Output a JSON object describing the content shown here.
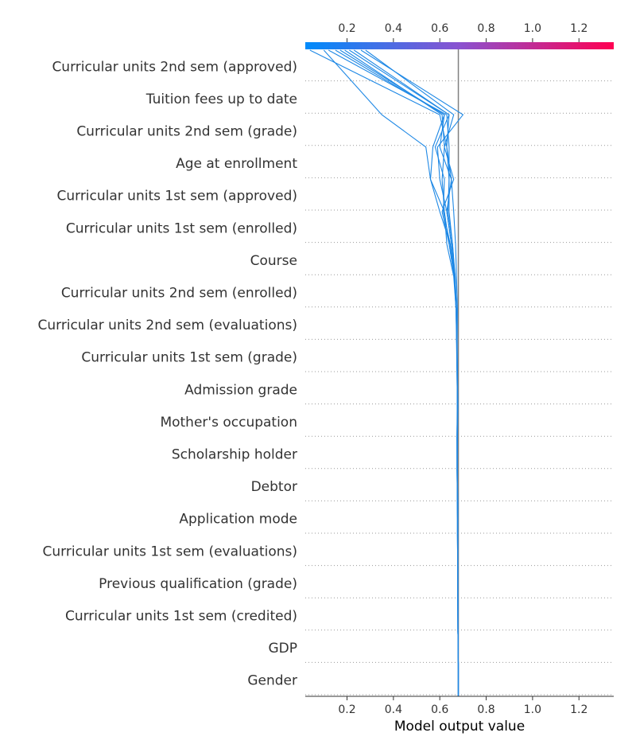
{
  "chart_data": {
    "type": "line",
    "title": "",
    "xlabel": "Model output value",
    "ylabel": "",
    "xlim": [
      0.02,
      1.35
    ],
    "x_ticks": [
      0.2,
      0.4,
      0.6,
      0.8,
      1.0,
      1.2
    ],
    "x_tick_labels": [
      "0.2",
      "0.4",
      "0.6",
      "0.8",
      "1.0",
      "1.2"
    ],
    "base_value": 0.68,
    "grid": "dotted horizontal",
    "colorbar": {
      "position": "top",
      "from_color": "#008bfb",
      "to_color": "#ff0052"
    },
    "features": [
      "Curricular units 2nd sem (approved)",
      "Tuition fees up to date",
      "Curricular units 2nd sem (grade)",
      "Age at enrollment",
      "Curricular units 1st sem (approved)",
      "Curricular units 1st sem (enrolled)",
      "Course",
      "Curricular units 2nd sem (enrolled)",
      "Curricular units 2nd sem (evaluations)",
      "Curricular units 1st sem (grade)",
      "Admission grade",
      "Mother's occupation",
      "Scholarship holder",
      "Debtor",
      "Application mode",
      "Curricular units 1st sem (evaluations)",
      "Previous qualification (grade)",
      "Curricular units 1st sem (credited)",
      "GDP",
      "Gender"
    ],
    "line_color": "#1e88e5",
    "series": [
      {
        "values": [
          0.68,
          0.68,
          0.68,
          0.678,
          0.678,
          0.678,
          0.678,
          0.678,
          0.675,
          0.676,
          0.678,
          0.676,
          0.675,
          0.676,
          0.672,
          0.668,
          0.66,
          0.65,
          0.63,
          0.6,
          0.04
        ]
      },
      {
        "values": [
          0.68,
          0.68,
          0.68,
          0.678,
          0.677,
          0.677,
          0.676,
          0.676,
          0.674,
          0.674,
          0.676,
          0.674,
          0.672,
          0.67,
          0.662,
          0.64,
          0.62,
          0.56,
          0.54,
          0.35,
          0.1
        ]
      },
      {
        "values": [
          0.68,
          0.68,
          0.68,
          0.678,
          0.678,
          0.677,
          0.677,
          0.676,
          0.675,
          0.675,
          0.677,
          0.675,
          0.673,
          0.671,
          0.664,
          0.645,
          0.6,
          0.56,
          0.57,
          0.62,
          0.15
        ]
      },
      {
        "values": [
          0.68,
          0.68,
          0.68,
          0.678,
          0.678,
          0.678,
          0.677,
          0.676,
          0.675,
          0.675,
          0.676,
          0.676,
          0.674,
          0.672,
          0.666,
          0.65,
          0.63,
          0.65,
          0.6,
          0.62,
          0.17
        ]
      },
      {
        "values": [
          0.68,
          0.68,
          0.68,
          0.678,
          0.678,
          0.677,
          0.676,
          0.676,
          0.674,
          0.675,
          0.675,
          0.675,
          0.673,
          0.67,
          0.662,
          0.64,
          0.61,
          0.66,
          0.62,
          0.61,
          0.19
        ]
      },
      {
        "values": [
          0.68,
          0.68,
          0.68,
          0.678,
          0.677,
          0.677,
          0.677,
          0.676,
          0.675,
          0.674,
          0.675,
          0.675,
          0.674,
          0.671,
          0.665,
          0.655,
          0.64,
          0.64,
          0.63,
          0.64,
          0.21
        ]
      },
      {
        "values": [
          0.68,
          0.68,
          0.68,
          0.678,
          0.678,
          0.678,
          0.677,
          0.676,
          0.675,
          0.675,
          0.676,
          0.674,
          0.673,
          0.671,
          0.662,
          0.645,
          0.615,
          0.62,
          0.58,
          0.64,
          0.23
        ]
      },
      {
        "values": [
          0.68,
          0.68,
          0.68,
          0.678,
          0.678,
          0.677,
          0.677,
          0.677,
          0.675,
          0.675,
          0.676,
          0.675,
          0.673,
          0.672,
          0.665,
          0.65,
          0.63,
          0.6,
          0.59,
          0.7,
          0.26
        ]
      },
      {
        "values": [
          0.68,
          0.68,
          0.68,
          0.678,
          0.677,
          0.677,
          0.676,
          0.676,
          0.675,
          0.674,
          0.676,
          0.675,
          0.673,
          0.67,
          0.66,
          0.63,
          0.62,
          0.61,
          0.62,
          0.66,
          0.28
        ]
      },
      {
        "values": [
          0.68,
          0.68,
          0.68,
          0.678,
          0.678,
          0.677,
          0.677,
          0.676,
          0.675,
          0.675,
          0.676,
          0.675,
          0.674,
          0.672,
          0.666,
          0.655,
          0.635,
          0.64,
          0.64,
          0.63,
          0.12
        ]
      }
    ]
  }
}
